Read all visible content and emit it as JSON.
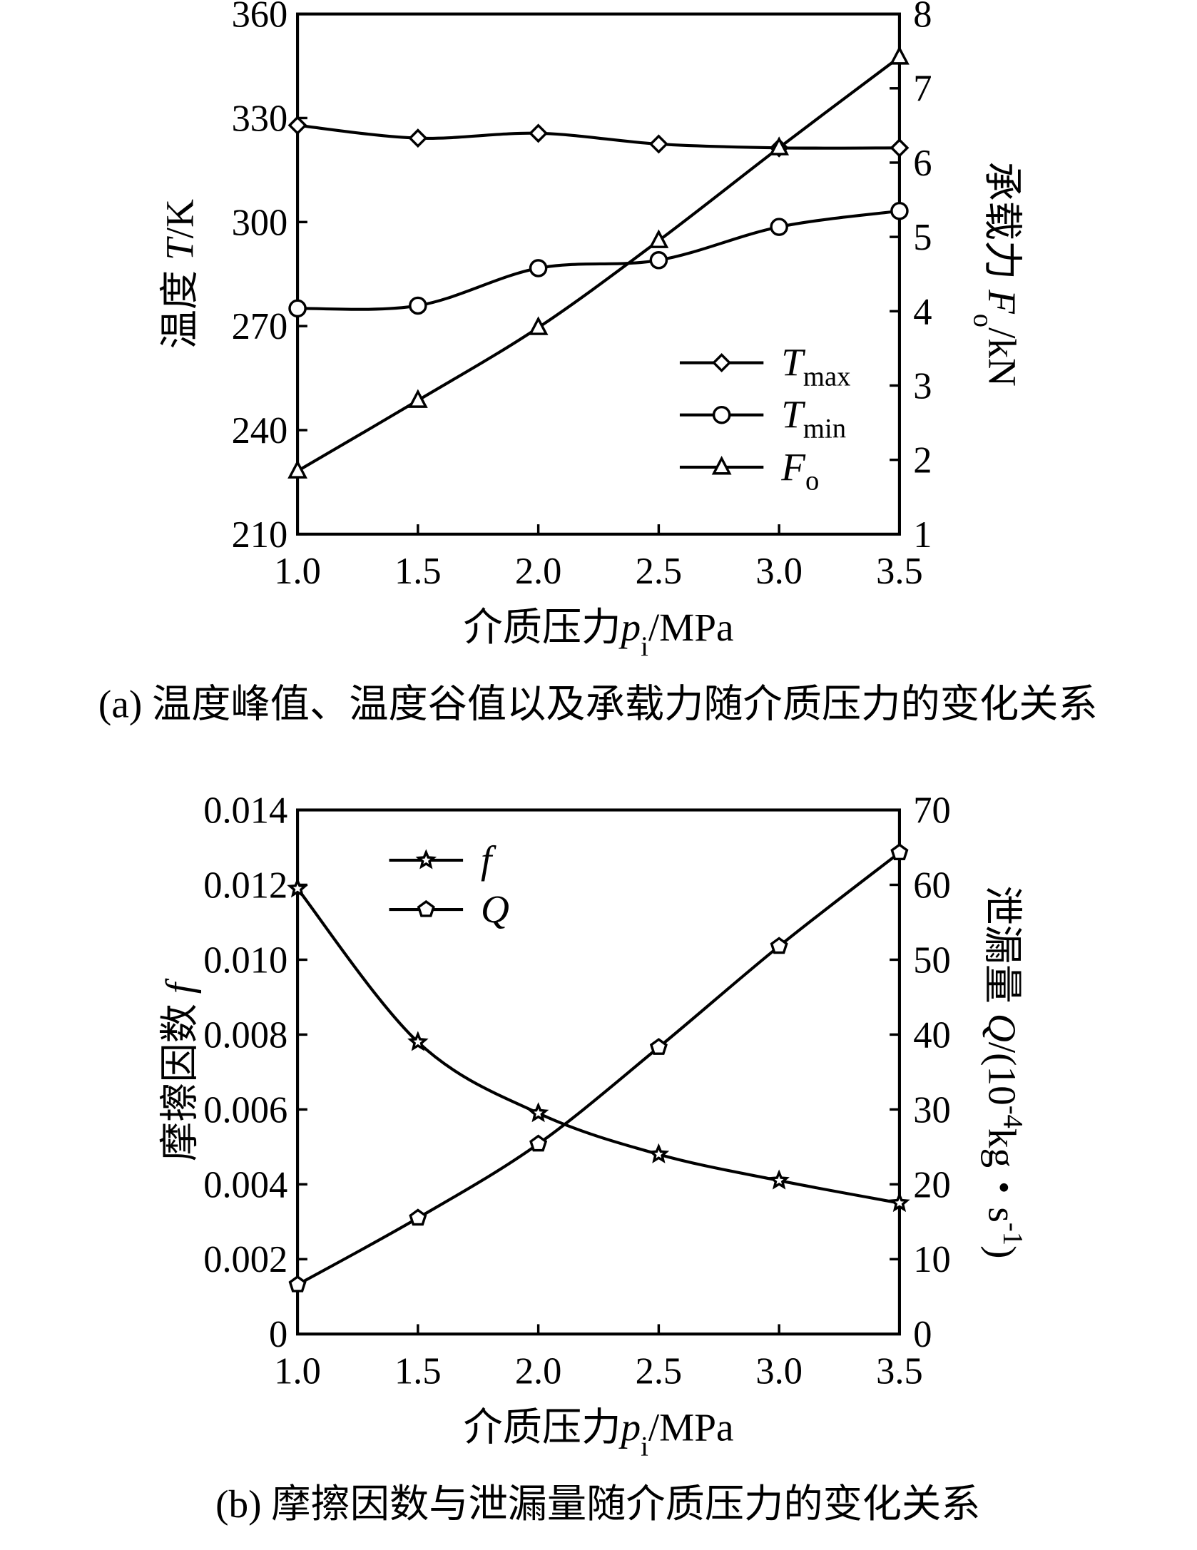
{
  "chart_data": [
    {
      "type": "line",
      "caption": "(a) 温度峰值、温度谷值以及承载力随介质压力的变化关系",
      "x_label": [
        {
          "text": "介质压力",
          "style": "normal"
        },
        {
          "text": "p",
          "style": "italic"
        },
        {
          "text": "i",
          "style": "sub"
        },
        {
          "text": "/MPa",
          "style": "normal"
        }
      ],
      "y_label": [
        {
          "text": "温度 ",
          "style": "normal"
        },
        {
          "text": "T",
          "style": "italic"
        },
        {
          "text": "/K",
          "style": "normal"
        }
      ],
      "y2_label": [
        {
          "text": "承载力 ",
          "style": "normal"
        },
        {
          "text": "F",
          "style": "italic"
        },
        {
          "text": "o",
          "style": "sub"
        },
        {
          "text": "/kN",
          "style": "normal"
        }
      ],
      "x": [
        1.0,
        1.5,
        2.0,
        2.5,
        3.0,
        3.5
      ],
      "xlim": [
        1.0,
        3.5
      ],
      "xticks": [
        {
          "value": 1.0,
          "label": "1.0"
        },
        {
          "value": 1.5,
          "label": "1.5"
        },
        {
          "value": 2.0,
          "label": "2.0"
        },
        {
          "value": 2.5,
          "label": "2.5"
        },
        {
          "value": 3.0,
          "label": "3.0"
        },
        {
          "value": 3.5,
          "label": "3.5"
        }
      ],
      "ylim": [
        210,
        360
      ],
      "yticks": [
        210,
        240,
        270,
        300,
        330,
        360
      ],
      "y2lim": [
        1,
        8
      ],
      "y2ticks": [
        1,
        2,
        3,
        4,
        5,
        6,
        7,
        8
      ],
      "series": [
        {
          "name": "T",
          "name_sub": "max",
          "name_style": "italic",
          "marker": "diamond",
          "color": "#000000",
          "values": [
            327.9,
            324.2,
            325.6,
            322.5,
            321.4,
            321.4
          ]
        },
        {
          "name": "T",
          "name_sub": "min",
          "name_style": "italic",
          "marker": "circle",
          "color": "#000000",
          "values": [
            275.1,
            275.9,
            286.7,
            289.0,
            298.6,
            303.2
          ]
        },
        {
          "name": "F",
          "name_sub": "o",
          "name_style": "italic",
          "marker": "triangle",
          "color": "#000000",
          "axis": "y2",
          "values": [
            1.85,
            2.8,
            3.78,
            4.95,
            6.2,
            7.42
          ]
        }
      ]
    },
    {
      "type": "line",
      "caption": "(b) 摩擦因数与泄漏量随介质压力的变化关系",
      "x_label": [
        {
          "text": "介质压力",
          "style": "normal"
        },
        {
          "text": "p",
          "style": "italic"
        },
        {
          "text": "i",
          "style": "sub"
        },
        {
          "text": "/MPa",
          "style": "normal"
        }
      ],
      "y_label": [
        {
          "text": "摩擦因数 ",
          "style": "normal"
        },
        {
          "text": "f",
          "style": "italic"
        }
      ],
      "y2_label": [
        {
          "text": "泄漏量 ",
          "style": "normal"
        },
        {
          "text": "Q",
          "style": "italic"
        },
        {
          "text": "/(10",
          "style": "normal"
        },
        {
          "text": "-4",
          "style": "sup"
        },
        {
          "text": "kg・s",
          "style": "normal"
        },
        {
          "text": "-1",
          "style": "sup"
        },
        {
          "text": ")",
          "style": "normal"
        }
      ],
      "x": [
        1.0,
        1.5,
        2.0,
        2.5,
        3.0,
        3.5
      ],
      "xlim": [
        1.0,
        3.5
      ],
      "xticks": [
        {
          "value": 1.0,
          "label": "1.0"
        },
        {
          "value": 1.5,
          "label": "1.5"
        },
        {
          "value": 2.0,
          "label": "2.0"
        },
        {
          "value": 2.5,
          "label": "2.5"
        },
        {
          "value": 3.0,
          "label": "3.0"
        },
        {
          "value": 3.5,
          "label": "3.5"
        }
      ],
      "ylim": [
        0,
        0.014
      ],
      "yticks": [
        0,
        0.002,
        0.004,
        0.006,
        0.008,
        {
          "value": 0.01,
          "label": "0.010"
        },
        0.012,
        0.014
      ],
      "y2lim": [
        0,
        70
      ],
      "y2ticks": [
        0,
        10,
        20,
        30,
        40,
        50,
        60,
        70
      ],
      "series": [
        {
          "name": "f",
          "name_style": "italic",
          "marker": "star",
          "color": "#000000",
          "values": [
            0.0119,
            0.0078,
            0.0059,
            0.0048,
            0.0041,
            0.0035
          ]
        },
        {
          "name": "Q",
          "name_style": "italic",
          "marker": "pentagon",
          "color": "#000000",
          "axis": "y2",
          "values": [
            6.6,
            15.5,
            25.4,
            38.3,
            51.8,
            64.3
          ]
        }
      ]
    }
  ]
}
